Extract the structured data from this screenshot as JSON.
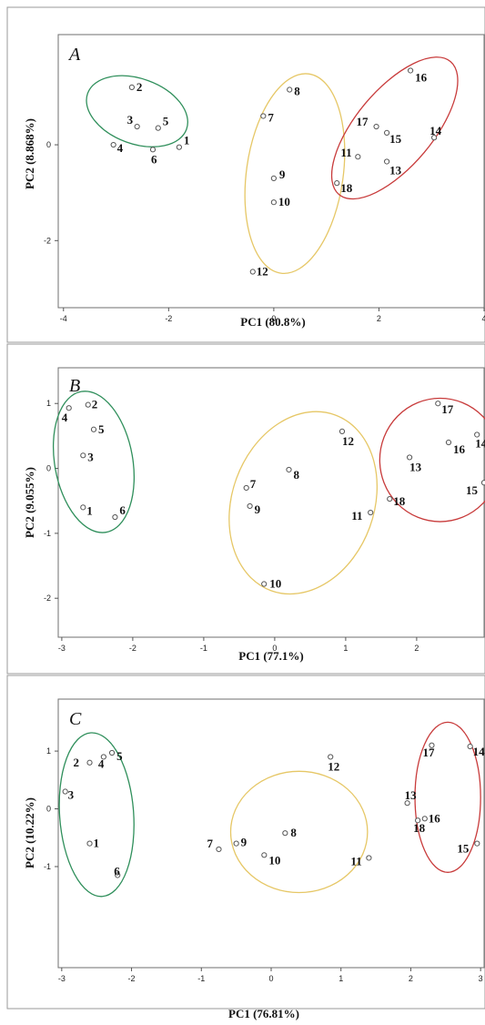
{
  "colors": {
    "green": "#2f8f5b",
    "yellow": "#e6c766",
    "red": "#c83b3b"
  },
  "figure": {
    "bottom_xlabel": "PC1 (76.81%)"
  },
  "chart_data": [
    {
      "type": "scatter",
      "panel_label": "A",
      "xlabel": "PC1 (80.8%)",
      "ylabel": "PC2 (8.868%)",
      "xlim": [
        -4.1,
        4.0
      ],
      "ylim": [
        -3.4,
        2.3
      ],
      "xticks": [
        -4,
        -2,
        0,
        2,
        4
      ],
      "yticks": [
        -2,
        0
      ],
      "points": [
        {
          "label": "1",
          "x": -1.8,
          "y": -0.05
        },
        {
          "label": "2",
          "x": -2.7,
          "y": 1.2
        },
        {
          "label": "3",
          "x": -2.6,
          "y": 0.38
        },
        {
          "label": "4",
          "x": -3.05,
          "y": 0.0
        },
        {
          "label": "5",
          "x": -2.2,
          "y": 0.35
        },
        {
          "label": "6",
          "x": -2.3,
          "y": -0.1
        },
        {
          "label": "7",
          "x": -0.2,
          "y": 0.6
        },
        {
          "label": "8",
          "x": 0.3,
          "y": 1.15
        },
        {
          "label": "9",
          "x": 0.0,
          "y": -0.7
        },
        {
          "label": "10",
          "x": 0.0,
          "y": -1.2
        },
        {
          "label": "11",
          "x": 1.6,
          "y": -0.25
        },
        {
          "label": "12",
          "x": -0.4,
          "y": -2.65
        },
        {
          "label": "13",
          "x": 2.15,
          "y": -0.35
        },
        {
          "label": "14",
          "x": 3.05,
          "y": 0.15
        },
        {
          "label": "15",
          "x": 2.15,
          "y": 0.25
        },
        {
          "label": "16",
          "x": 2.6,
          "y": 1.55
        },
        {
          "label": "17",
          "x": 1.95,
          "y": 0.38
        },
        {
          "label": "18",
          "x": 1.2,
          "y": -0.8
        }
      ],
      "groups": [
        {
          "color": "green",
          "cx": -2.6,
          "cy": 0.7,
          "rx": 1.0,
          "ry": 0.68,
          "rotate": 20
        },
        {
          "color": "yellow",
          "cx": 0.4,
          "cy": -0.6,
          "rx": 0.92,
          "ry": 2.1,
          "rotate": 8
        },
        {
          "color": "red",
          "cx": 2.3,
          "cy": 0.35,
          "rx": 1.65,
          "ry": 0.8,
          "rotate": -50
        }
      ]
    },
    {
      "type": "scatter",
      "panel_label": "B",
      "xlabel": "PC1 (77.1%)",
      "ylabel": "PC2 (9.055%)",
      "xlim": [
        -3.05,
        2.95
      ],
      "ylim": [
        -2.6,
        1.55
      ],
      "xticks": [
        -3,
        -2,
        -1,
        0,
        1,
        2,
        3
      ],
      "yticks": [
        -2,
        -1,
        0,
        1
      ],
      "points": [
        {
          "label": "1",
          "x": -2.7,
          "y": -0.6
        },
        {
          "label": "2",
          "x": -2.63,
          "y": 0.98
        },
        {
          "label": "3",
          "x": -2.7,
          "y": 0.2
        },
        {
          "label": "4",
          "x": -2.9,
          "y": 0.93
        },
        {
          "label": "5",
          "x": -2.55,
          "y": 0.6
        },
        {
          "label": "6",
          "x": -2.25,
          "y": -0.75
        },
        {
          "label": "7",
          "x": -0.4,
          "y": -0.3
        },
        {
          "label": "8",
          "x": 0.2,
          "y": -0.02
        },
        {
          "label": "9",
          "x": -0.35,
          "y": -0.58
        },
        {
          "label": "10",
          "x": -0.15,
          "y": -1.78
        },
        {
          "label": "11",
          "x": 1.35,
          "y": -0.68
        },
        {
          "label": "12",
          "x": 0.95,
          "y": 0.57
        },
        {
          "label": "13",
          "x": 1.9,
          "y": 0.17
        },
        {
          "label": "14",
          "x": 2.85,
          "y": 0.52
        },
        {
          "label": "15",
          "x": 2.95,
          "y": -0.22
        },
        {
          "label": "16",
          "x": 2.45,
          "y": 0.4
        },
        {
          "label": "17",
          "x": 2.3,
          "y": 1.0
        },
        {
          "label": "18",
          "x": 1.62,
          "y": -0.47
        }
      ],
      "groups": [
        {
          "color": "green",
          "cx": -2.55,
          "cy": 0.1,
          "rx": 0.55,
          "ry": 1.1,
          "rotate": -10
        },
        {
          "color": "yellow",
          "cx": 0.4,
          "cy": -0.53,
          "rx": 1.0,
          "ry": 1.44,
          "rotate": 20
        },
        {
          "color": "red",
          "cx": 2.33,
          "cy": 0.13,
          "rx": 0.85,
          "ry": 0.95,
          "rotate": 0
        }
      ]
    },
    {
      "type": "scatter",
      "panel_label": "C",
      "xlabel": "PC1 (76.81%)",
      "ylabel": "PC2 (10.22%)",
      "xlim": [
        -3.05,
        3.05
      ],
      "ylim": [
        -2.75,
        1.9
      ],
      "xticks": [
        -3,
        -2,
        -1,
        0,
        1,
        2,
        3
      ],
      "yticks": [
        -1,
        0,
        1
      ],
      "points": [
        {
          "label": "1",
          "x": -2.6,
          "y": -0.6
        },
        {
          "label": "2",
          "x": -2.6,
          "y": 0.8
        },
        {
          "label": "3",
          "x": -2.95,
          "y": 0.3
        },
        {
          "label": "4",
          "x": -2.4,
          "y": 0.9
        },
        {
          "label": "5",
          "x": -2.28,
          "y": 0.97
        },
        {
          "label": "6",
          "x": -2.2,
          "y": -1.15
        },
        {
          "label": "7",
          "x": -0.75,
          "y": -0.7
        },
        {
          "label": "8",
          "x": 0.2,
          "y": -0.42
        },
        {
          "label": "9",
          "x": -0.5,
          "y": -0.6
        },
        {
          "label": "10",
          "x": -0.1,
          "y": -0.8
        },
        {
          "label": "11",
          "x": 1.4,
          "y": -0.85
        },
        {
          "label": "12",
          "x": 0.85,
          "y": 0.9
        },
        {
          "label": "13",
          "x": 1.95,
          "y": 0.1
        },
        {
          "label": "14",
          "x": 2.85,
          "y": 1.08
        },
        {
          "label": "15",
          "x": 2.95,
          "y": -0.6
        },
        {
          "label": "16",
          "x": 2.2,
          "y": -0.17
        },
        {
          "label": "17",
          "x": 2.3,
          "y": 1.1
        },
        {
          "label": "18",
          "x": 2.1,
          "y": -0.2
        }
      ],
      "groups": [
        {
          "color": "green",
          "cx": -2.5,
          "cy": -0.1,
          "rx": 0.53,
          "ry": 1.42,
          "rotate": -4
        },
        {
          "color": "yellow",
          "cx": 0.4,
          "cy": -0.4,
          "rx": 0.98,
          "ry": 1.05,
          "rotate": 0
        },
        {
          "color": "red",
          "cx": 2.53,
          "cy": 0.2,
          "rx": 0.47,
          "ry": 1.3,
          "rotate": 0
        }
      ]
    }
  ]
}
